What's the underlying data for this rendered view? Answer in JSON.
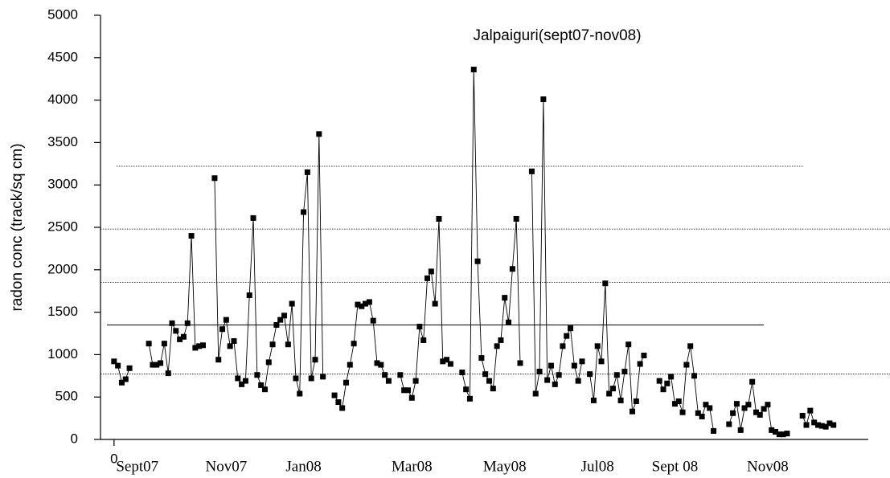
{
  "chart_data": {
    "type": "line",
    "title": "Jalpaiguri(sept07-nov08)",
    "y_label": "radon conc (track/sq cm)",
    "color": "#000000",
    "marker": "square",
    "x": [
      0,
      1,
      2,
      3,
      4,
      5,
      6,
      7,
      8,
      9,
      10,
      11,
      12,
      13,
      14,
      15,
      16,
      17,
      18,
      19,
      20,
      21,
      22,
      23,
      24,
      25,
      26,
      27,
      28,
      29,
      30,
      31,
      32,
      33,
      34,
      35,
      36,
      37,
      38,
      39,
      40,
      41,
      42,
      43,
      44,
      45,
      46,
      47,
      48,
      49,
      50,
      51,
      52,
      53,
      54,
      55,
      56,
      57,
      58,
      59,
      60,
      61,
      62,
      63,
      64,
      65,
      66,
      67,
      68,
      69,
      70,
      71,
      72,
      73,
      74,
      75,
      76,
      77,
      78,
      79,
      80,
      81,
      82,
      83,
      84,
      85,
      86,
      87,
      88,
      89,
      90,
      91,
      92,
      93,
      94,
      95,
      96,
      97,
      98,
      99,
      100,
      101,
      102,
      103,
      104,
      105,
      106,
      107,
      108,
      109,
      110,
      111,
      112,
      113,
      114,
      115,
      116,
      117,
      118,
      119,
      120,
      121,
      122,
      123,
      124,
      125,
      126,
      127,
      128,
      129,
      130,
      131,
      132,
      133,
      134,
      135,
      136,
      137,
      138,
      139,
      140,
      141,
      142,
      143,
      144,
      145,
      146,
      147,
      148,
      149,
      150,
      151,
      152,
      153,
      154,
      155,
      156,
      157,
      158,
      159,
      160,
      161,
      162,
      163,
      164,
      165,
      166,
      167,
      168,
      169,
      170,
      171,
      172,
      173,
      174,
      175,
      176,
      177,
      178,
      179,
      180,
      181,
      182,
      183,
      184,
      185,
      186
    ],
    "values": [
      920,
      870,
      670,
      710,
      840,
      null,
      null,
      null,
      null,
      1130,
      880,
      880,
      900,
      1130,
      780,
      1370,
      1280,
      1180,
      1210,
      1370,
      2400,
      1080,
      1100,
      1110,
      null,
      null,
      3080,
      940,
      1300,
      1410,
      1100,
      1160,
      720,
      650,
      690,
      1700,
      2610,
      760,
      640,
      590,
      910,
      1120,
      1350,
      1410,
      1460,
      1120,
      1600,
      720,
      540,
      2680,
      3150,
      720,
      940,
      3600,
      740,
      null,
      null,
      520,
      440,
      370,
      670,
      880,
      1130,
      1590,
      1570,
      1600,
      1620,
      1400,
      900,
      880,
      760,
      690,
      null,
      null,
      760,
      580,
      580,
      490,
      690,
      1330,
      1170,
      1900,
      1980,
      1600,
      2600,
      920,
      940,
      890,
      null,
      null,
      790,
      590,
      480,
      4360,
      2100,
      960,
      770,
      690,
      600,
      1100,
      1170,
      1670,
      1380,
      2010,
      2600,
      900,
      null,
      null,
      3160,
      540,
      800,
      4010,
      700,
      870,
      650,
      760,
      1100,
      1220,
      1310,
      870,
      690,
      920,
      null,
      770,
      460,
      1100,
      920,
      1840,
      540,
      600,
      760,
      460,
      800,
      1120,
      330,
      450,
      890,
      990,
      null,
      null,
      null,
      690,
      590,
      660,
      740,
      420,
      450,
      320,
      880,
      1100,
      750,
      310,
      270,
      410,
      370,
      100,
      null,
      null,
      null,
      180,
      310,
      420,
      110,
      370,
      410,
      680,
      320,
      290,
      360,
      410,
      110,
      90,
      60,
      60,
      70,
      null,
      null,
      null,
      280,
      170,
      340,
      200,
      170,
      160,
      150,
      190,
      170
    ],
    "xlim": [
      -3.5,
      195
    ],
    "xticks": [
      0,
      {
        "value": 6,
        "label": "Sept07"
      },
      {
        "value": 29,
        "label": "Nov07"
      },
      {
        "value": 49,
        "label": "Jan08"
      },
      {
        "value": 77,
        "label": "Mar08"
      },
      {
        "value": 101,
        "label": "May08"
      },
      {
        "value": 125,
        "label": "Jul08"
      },
      {
        "value": 145,
        "label": "Sept 08"
      },
      {
        "value": 169,
        "label": "Nov08"
      }
    ],
    "ylim": [
      0,
      5000
    ],
    "yticks": [
      0,
      500,
      1000,
      1500,
      2000,
      2500,
      3000,
      3500,
      4000,
      4500,
      5000
    ],
    "reference_lines": [
      {
        "value": 3220,
        "style": "dotted"
      },
      {
        "value": 2480,
        "style": "dotted"
      },
      {
        "value": 1850,
        "style": "dotted"
      },
      {
        "value": 1350,
        "style": "solid"
      },
      {
        "value": 770,
        "style": "dotted"
      }
    ]
  }
}
